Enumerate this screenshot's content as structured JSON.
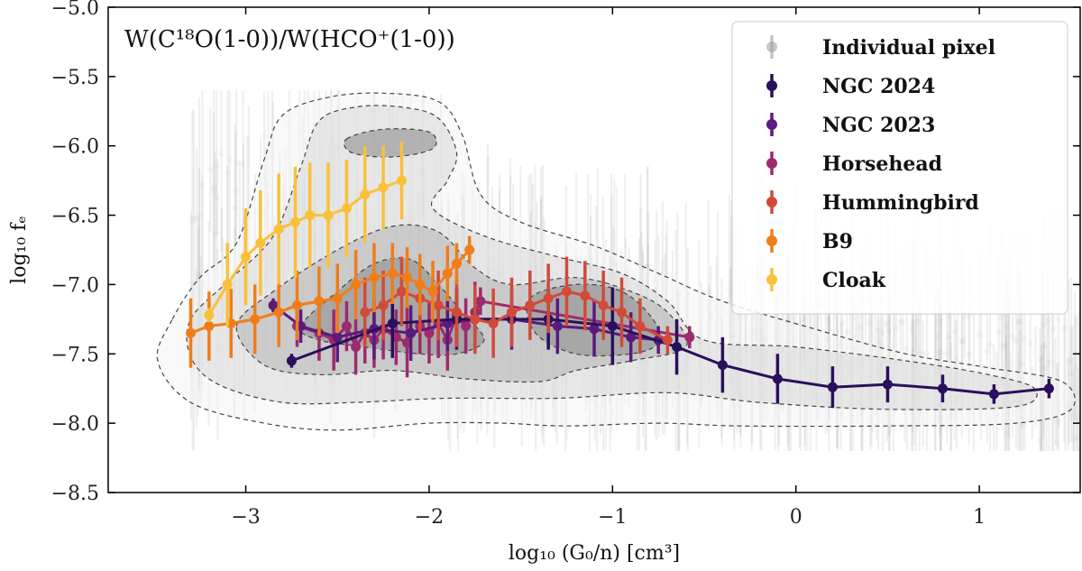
{
  "chart_data": {
    "type": "scatter",
    "title": "W(C¹⁸O(1-0))/W(HCO⁺(1-0))",
    "xlabel": "log₁₀ (G₀/n) [cm³]",
    "ylabel": "log₁₀ fₑ",
    "xlim": [
      -3.75,
      1.55
    ],
    "ylim": [
      -8.5,
      -5.0
    ],
    "xticks": [
      -3,
      -2,
      -1,
      0,
      1
    ],
    "xtick_labels": [
      "−3",
      "−2",
      "−1",
      "0",
      "1"
    ],
    "yticks": [
      -8.5,
      -8.0,
      -7.5,
      -7.0,
      -6.5,
      -6.0,
      -5.5,
      -5.0
    ],
    "ytick_labels": [
      "−8.5",
      "−8.0",
      "−7.5",
      "−7.0",
      "−6.5",
      "−6.0",
      "−5.5",
      "−5.0"
    ],
    "legend_position": "top-right",
    "background": {
      "name": "Individual pixel",
      "color": "#a0a0a0",
      "description_contours": [
        {
          "level": 1,
          "polygon": [
            [
              -3.4,
              -7.25
            ],
            [
              -3.25,
              -6.95
            ],
            [
              -3.05,
              -6.7
            ],
            [
              -2.9,
              -6.1
            ],
            [
              -2.8,
              -5.78
            ],
            [
              -2.55,
              -5.65
            ],
            [
              -2.25,
              -5.62
            ],
            [
              -1.95,
              -5.68
            ],
            [
              -1.82,
              -5.92
            ],
            [
              -1.72,
              -6.35
            ],
            [
              -1.5,
              -6.55
            ],
            [
              -1.1,
              -6.72
            ],
            [
              -0.75,
              -6.92
            ],
            [
              -0.4,
              -7.12
            ],
            [
              0.1,
              -7.32
            ],
            [
              0.6,
              -7.5
            ],
            [
              1.05,
              -7.6
            ],
            [
              1.45,
              -7.7
            ],
            [
              1.5,
              -7.9
            ],
            [
              1.2,
              -8.0
            ],
            [
              0.5,
              -8.02
            ],
            [
              -0.3,
              -8.02
            ],
            [
              -0.75,
              -8.0
            ],
            [
              -1.25,
              -8.02
            ],
            [
              -1.6,
              -8.0
            ],
            [
              -2.0,
              -8.0
            ],
            [
              -2.5,
              -8.05
            ],
            [
              -2.9,
              -8.0
            ],
            [
              -3.3,
              -7.85
            ],
            [
              -3.48,
              -7.55
            ]
          ]
        },
        {
          "level": 2,
          "polygon": [
            [
              -3.3,
              -7.25
            ],
            [
              -3.1,
              -6.98
            ],
            [
              -2.85,
              -6.65
            ],
            [
              -2.7,
              -6.15
            ],
            [
              -2.6,
              -5.82
            ],
            [
              -2.4,
              -5.72
            ],
            [
              -2.15,
              -5.72
            ],
            [
              -1.95,
              -5.8
            ],
            [
              -1.85,
              -6.05
            ],
            [
              -1.9,
              -6.25
            ],
            [
              -1.98,
              -6.45
            ],
            [
              -1.7,
              -6.65
            ],
            [
              -1.3,
              -6.8
            ],
            [
              -0.95,
              -6.92
            ],
            [
              -0.7,
              -7.12
            ],
            [
              -0.5,
              -7.4
            ],
            [
              0.0,
              -7.45
            ],
            [
              0.6,
              -7.55
            ],
            [
              1.05,
              -7.65
            ],
            [
              1.3,
              -7.75
            ],
            [
              1.2,
              -7.88
            ],
            [
              0.5,
              -7.9
            ],
            [
              -0.2,
              -7.85
            ],
            [
              -0.7,
              -7.78
            ],
            [
              -1.3,
              -7.82
            ],
            [
              -1.9,
              -7.82
            ],
            [
              -2.4,
              -7.85
            ],
            [
              -2.8,
              -7.85
            ],
            [
              -3.15,
              -7.72
            ],
            [
              -3.3,
              -7.52
            ]
          ]
        },
        {
          "level": 3,
          "polygon": [
            [
              -3.05,
              -7.3
            ],
            [
              -2.85,
              -7.05
            ],
            [
              -2.5,
              -6.75
            ],
            [
              -2.2,
              -6.58
            ],
            [
              -1.95,
              -6.62
            ],
            [
              -1.75,
              -6.88
            ],
            [
              -1.55,
              -7.0
            ],
            [
              -1.2,
              -6.95
            ],
            [
              -0.9,
              -7.05
            ],
            [
              -0.7,
              -7.2
            ],
            [
              -0.6,
              -7.45
            ],
            [
              -0.9,
              -7.55
            ],
            [
              -1.2,
              -7.62
            ],
            [
              -1.4,
              -7.7
            ],
            [
              -1.8,
              -7.68
            ],
            [
              -2.2,
              -7.62
            ],
            [
              -2.6,
              -7.65
            ],
            [
              -2.9,
              -7.58
            ]
          ]
        },
        {
          "level": 4,
          "polygon": [
            [
              -2.7,
              -7.3
            ],
            [
              -2.5,
              -7.05
            ],
            [
              -2.3,
              -6.85
            ],
            [
              -2.1,
              -6.82
            ],
            [
              -1.95,
              -7.0
            ],
            [
              -1.82,
              -7.2
            ],
            [
              -1.7,
              -7.4
            ],
            [
              -1.85,
              -7.5
            ],
            [
              -2.05,
              -7.5
            ],
            [
              -2.35,
              -7.45
            ],
            [
              -2.6,
              -7.4
            ]
          ]
        },
        {
          "level": 4,
          "polygon": [
            [
              -1.45,
              -7.1
            ],
            [
              -1.2,
              -7.0
            ],
            [
              -0.95,
              -7.05
            ],
            [
              -0.78,
              -7.25
            ],
            [
              -0.75,
              -7.42
            ],
            [
              -0.9,
              -7.5
            ],
            [
              -1.2,
              -7.5
            ],
            [
              -1.42,
              -7.35
            ]
          ]
        },
        {
          "level": 4,
          "polygon": [
            [
              -2.45,
              -5.95
            ],
            [
              -2.25,
              -5.88
            ],
            [
              -2.0,
              -5.9
            ],
            [
              -1.98,
              -6.02
            ],
            [
              -2.2,
              -6.08
            ],
            [
              -2.42,
              -6.05
            ]
          ]
        }
      ]
    },
    "series": [
      {
        "name": "NGC 2024",
        "color": "#2a0f5c",
        "x": [
          -2.75,
          -2.2,
          -1.85,
          -1.35,
          -1.0,
          -0.65,
          -0.4,
          -0.1,
          0.2,
          0.5,
          0.8,
          1.08,
          1.38
        ],
        "y": [
          -7.55,
          -7.28,
          -7.25,
          -7.25,
          -7.3,
          -7.45,
          -7.58,
          -7.68,
          -7.74,
          -7.72,
          -7.75,
          -7.79,
          -7.75
        ],
        "yerr": [
          0.05,
          0.25,
          0.22,
          0.22,
          0.28,
          0.2,
          0.2,
          0.18,
          0.15,
          0.13,
          0.1,
          0.07,
          0.07
        ]
      },
      {
        "name": "NGC 2023",
        "color": "#5a1a7e",
        "x": [
          -2.85,
          -2.7,
          -2.5,
          -2.3,
          -2.1,
          -1.9,
          -1.75,
          -1.55,
          -1.3,
          -1.1,
          -0.9,
          -0.75
        ],
        "y": [
          -7.15,
          -7.3,
          -7.38,
          -7.32,
          -7.35,
          -7.28,
          -7.25,
          -7.25,
          -7.3,
          -7.32,
          -7.38,
          -7.4
        ],
        "yerr": [
          0.05,
          0.12,
          0.18,
          0.22,
          0.2,
          0.2,
          0.22,
          0.22,
          0.2,
          0.2,
          0.18,
          0.1
        ]
      },
      {
        "name": "Horsehead",
        "color": "#9d2a6e",
        "x": [
          -2.72,
          -2.6,
          -2.52,
          -2.45,
          -2.4,
          -2.35,
          -2.3,
          -2.25,
          -2.18,
          -2.12,
          -2.05,
          -2.0,
          -1.95,
          -1.9,
          -1.85,
          -1.8,
          -1.75,
          -1.72,
          -0.58
        ],
        "y": [
          -7.3,
          -7.35,
          -7.4,
          -7.3,
          -7.45,
          -7.35,
          -7.4,
          -7.32,
          -7.38,
          -7.42,
          -7.3,
          -7.35,
          -7.28,
          -7.4,
          -7.22,
          -7.3,
          -7.2,
          -7.12,
          -7.38
        ],
        "yerr": [
          0.15,
          0.2,
          0.22,
          0.18,
          0.2,
          0.22,
          0.2,
          0.22,
          0.2,
          0.25,
          0.2,
          0.22,
          0.25,
          0.22,
          0.2,
          0.2,
          0.22,
          0.1,
          0.08
        ]
      },
      {
        "name": "Hummingbird",
        "color": "#d14a3a",
        "x": [
          -2.35,
          -2.25,
          -2.15,
          -2.05,
          -1.95,
          -1.85,
          -1.75,
          -1.65,
          -1.55,
          -1.45,
          -1.35,
          -1.25,
          -1.15,
          -1.05,
          -0.95,
          -0.85,
          -0.7
        ],
        "y": [
          -7.2,
          -7.15,
          -7.05,
          -7.1,
          -7.15,
          -7.2,
          -7.25,
          -7.28,
          -7.2,
          -7.15,
          -7.1,
          -7.05,
          -7.08,
          -7.15,
          -7.2,
          -7.3,
          -7.4
        ],
        "yerr": [
          0.25,
          0.25,
          0.25,
          0.25,
          0.25,
          0.25,
          0.25,
          0.25,
          0.25,
          0.25,
          0.25,
          0.25,
          0.25,
          0.25,
          0.25,
          0.2,
          0.1
        ]
      },
      {
        "name": "B9",
        "color": "#f07d1a",
        "x": [
          -3.3,
          -3.2,
          -3.08,
          -2.95,
          -2.82,
          -2.72,
          -2.6,
          -2.5,
          -2.4,
          -2.3,
          -2.2,
          -2.12,
          -2.05,
          -1.98,
          -1.9,
          -1.85,
          -1.78
        ],
        "y": [
          -7.35,
          -7.3,
          -7.28,
          -7.25,
          -7.2,
          -7.15,
          -7.12,
          -7.1,
          -7.0,
          -6.95,
          -6.92,
          -6.95,
          -7.0,
          -7.05,
          -6.92,
          -6.85,
          -6.75
        ],
        "yerr": [
          0.25,
          0.25,
          0.25,
          0.25,
          0.25,
          0.25,
          0.25,
          0.25,
          0.25,
          0.25,
          0.22,
          0.22,
          0.22,
          0.22,
          0.2,
          0.15,
          0.1
        ]
      },
      {
        "name": "Cloak",
        "color": "#f9c13a",
        "x": [
          -3.2,
          -3.1,
          -3.0,
          -2.92,
          -2.82,
          -2.73,
          -2.65,
          -2.55,
          -2.45,
          -2.35,
          -2.25,
          -2.15
        ],
        "y": [
          -7.22,
          -7.0,
          -6.8,
          -6.7,
          -6.6,
          -6.55,
          -6.5,
          -6.5,
          -6.45,
          -6.35,
          -6.3,
          -6.25
        ],
        "yerr": [
          0.05,
          0.3,
          0.35,
          0.38,
          0.4,
          0.4,
          0.38,
          0.38,
          0.35,
          0.35,
          0.3,
          0.28
        ]
      }
    ]
  },
  "legend": {
    "items": [
      {
        "label": "Individual pixel",
        "color": "#a0a0a0"
      },
      {
        "label": "NGC 2024",
        "color": "#2a0f5c"
      },
      {
        "label": "NGC 2023",
        "color": "#5a1a7e"
      },
      {
        "label": "Horsehead",
        "color": "#9d2a6e"
      },
      {
        "label": "Hummingbird",
        "color": "#d14a3a"
      },
      {
        "label": "B9",
        "color": "#f07d1a"
      },
      {
        "label": "Cloak",
        "color": "#f9c13a"
      }
    ]
  }
}
